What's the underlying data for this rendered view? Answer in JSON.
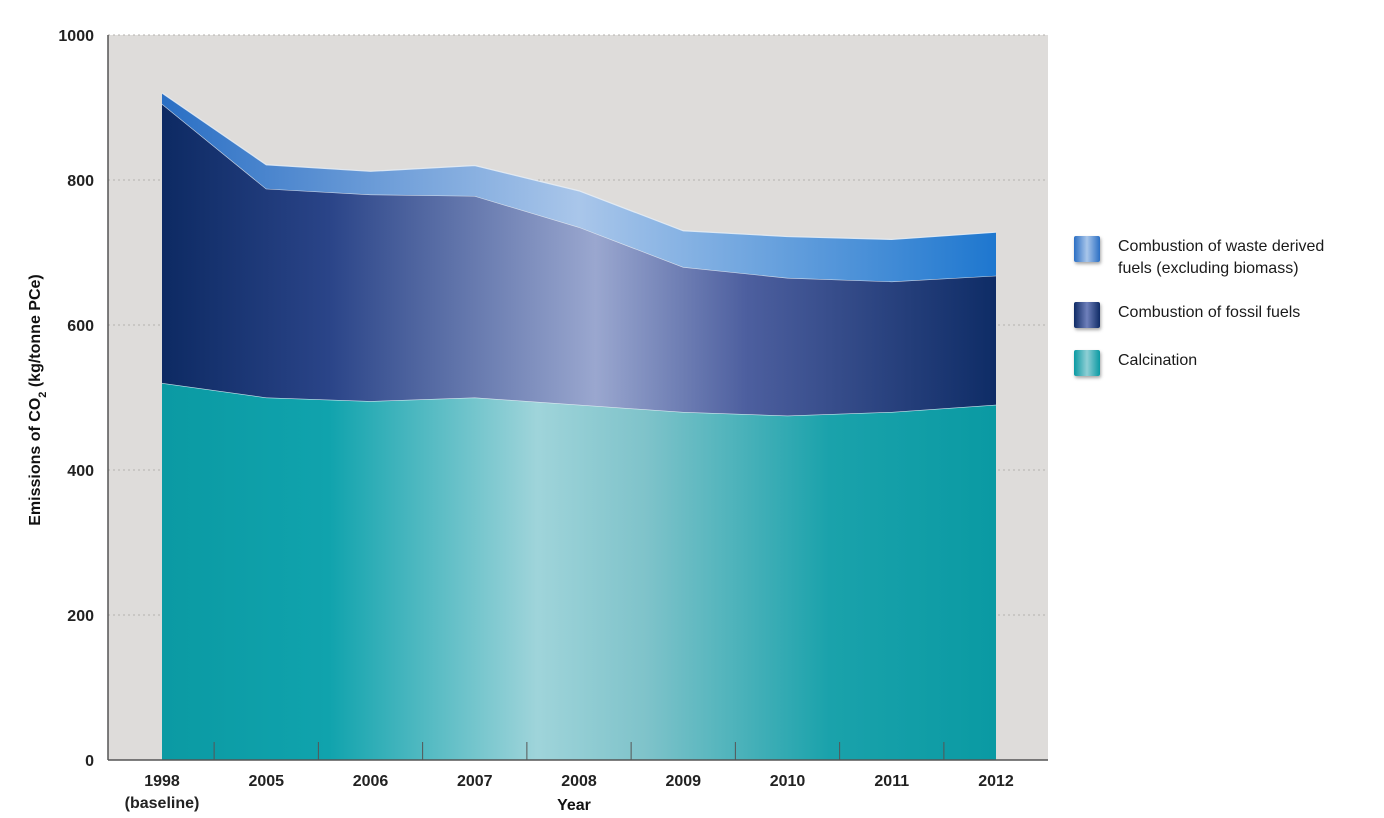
{
  "chart_data": {
    "type": "area",
    "stacked": true,
    "categories": [
      "1998",
      "2005",
      "2006",
      "2007",
      "2008",
      "2009",
      "2010",
      "2011",
      "2012"
    ],
    "category_sublabels": [
      "(baseline)",
      "",
      "",
      "",
      "",
      "",
      "",
      "",
      ""
    ],
    "xlabel": "Year",
    "ylabel_parts": [
      "Emissions of CO",
      "2",
      " (kg/tonne PCe)"
    ],
    "ylim": [
      0,
      1000
    ],
    "yticks": [
      "0",
      "200",
      "400",
      "600",
      "800",
      "1000"
    ],
    "grid": "horizontal dotted",
    "legend_position": "right",
    "series": [
      {
        "name": "Calcination",
        "values": [
          520,
          500,
          495,
          500,
          490,
          480,
          475,
          480,
          490
        ],
        "color": "#13a3ad"
      },
      {
        "name": "Combustion of fossil fuels",
        "values": [
          385,
          288,
          285,
          278,
          245,
          200,
          190,
          180,
          178
        ],
        "color": "#243b7c"
      },
      {
        "name": "Combustion of waste derived fuels (excluding biomass)",
        "values": [
          15,
          33,
          32,
          42,
          50,
          50,
          57,
          58,
          60
        ],
        "color": "#3d8ed9"
      }
    ]
  },
  "legend": [
    {
      "lines": [
        "Combustion of waste derived",
        "fuels (excluding biomass)"
      ]
    },
    {
      "lines": [
        "Combustion of fossil fuels"
      ]
    },
    {
      "lines": [
        "Calcination"
      ]
    }
  ]
}
